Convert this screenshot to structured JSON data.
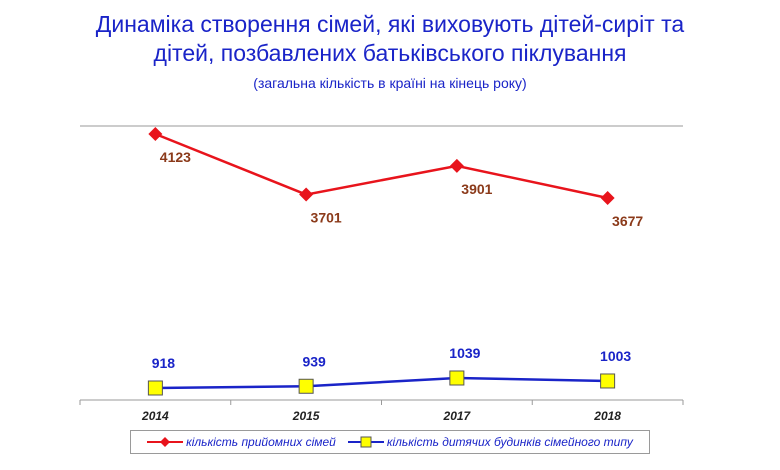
{
  "title_line1": "Динаміка створення сімей, які виховують дітей-сиріт та",
  "title_line2": "дітей, позбавлених батьківського піклування",
  "subtitle": "(загальна кількість в країні на кінець року)",
  "colors": {
    "series1": "#e8141c",
    "series1_label": "#8b3a1a",
    "series2": "#1a24c8",
    "series2_marker": "#ffff00",
    "axis": "#9a9a9a"
  },
  "chart_data": {
    "type": "line",
    "title": "Динаміка створення сімей, які виховують дітей-сиріт та дітей, позбавлених батьківського піклування",
    "subtitle": "(загальна кількість в країні на кінець року)",
    "categories": [
      "2014",
      "2015",
      "2017",
      "2018"
    ],
    "series": [
      {
        "name": "кількість прийомних сімей",
        "values": [
          4123,
          3701,
          3901,
          3677
        ],
        "marker": "diamond"
      },
      {
        "name": "кількість дитячих будинків сімейного типу",
        "values": [
          918,
          939,
          1039,
          1003
        ],
        "marker": "square"
      }
    ],
    "xlabel": "",
    "ylabel": "",
    "legend": "bottom"
  }
}
